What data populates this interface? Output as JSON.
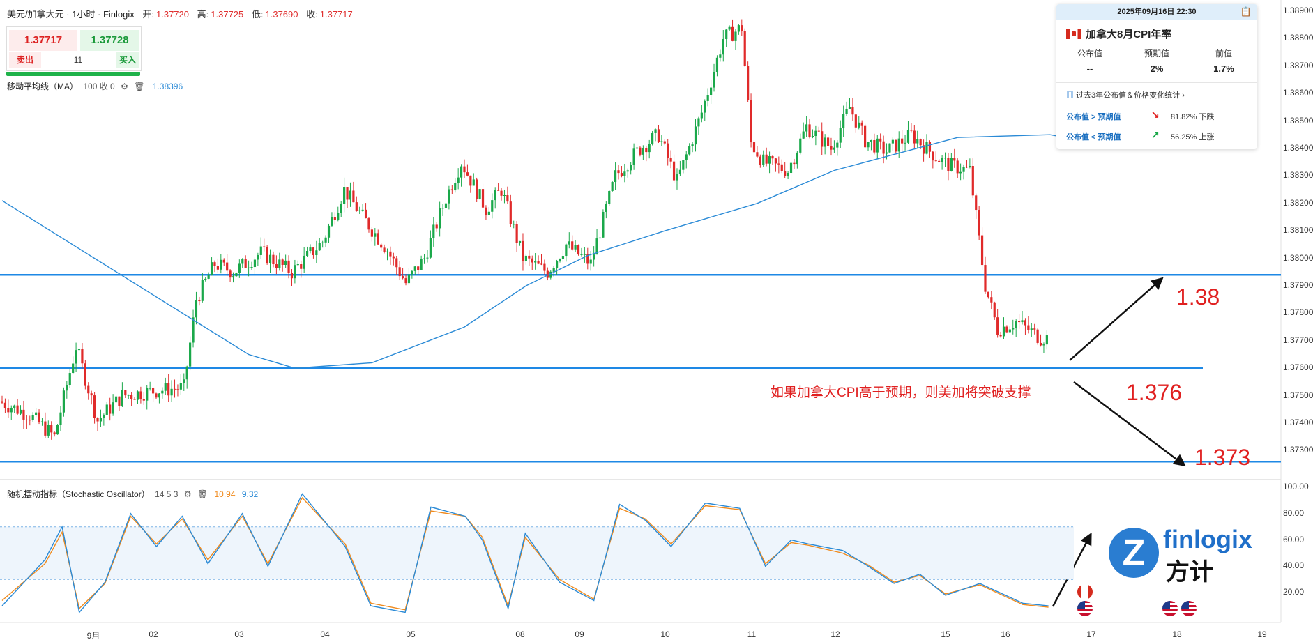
{
  "header": {
    "symbol": "美元/加拿大元 · 1小时 · Finlogix",
    "open_label": "开:",
    "open": "1.37720",
    "high_label": "高:",
    "high": "1.37725",
    "low_label": "低:",
    "low": "1.37690",
    "close_label": "收:",
    "close": "1.37717"
  },
  "trade": {
    "sell_price": "1.37717",
    "buy_price": "1.37728",
    "sell_label": "卖出",
    "buy_label": "买入",
    "quantity": "11"
  },
  "ma_indicator": {
    "label": "移动平均线（MA）",
    "params": "100 收 0",
    "value": "1.38396"
  },
  "stoch_indicator": {
    "label": "随机摆动指标（Stochastic Oscillator）",
    "params": "14 5 3",
    "k_value": "10.94",
    "d_value": "9.32"
  },
  "event_card": {
    "datetime": "2025年09月16日 22:30",
    "title": "加拿大8月CPI年率",
    "cols": [
      {
        "header": "公布值",
        "value": "--"
      },
      {
        "header": "预期值",
        "value": "2%"
      },
      {
        "header": "前值",
        "value": "1.7%"
      }
    ],
    "stats_label": "过去3年公布值＆价格变化统计",
    "rows": [
      {
        "key": "公布值 > 预期值",
        "result": "81.82% 下跌",
        "color": "#e02020"
      },
      {
        "key": "公布值 < 预期值",
        "result": "56.25% 上涨",
        "color": "#1aa84a"
      }
    ]
  },
  "annotations": {
    "note": "如果加拿大CPI高于预期，则美加将突破支撑",
    "level_up": "1.38",
    "level_mid": "1.376",
    "level_low": "1.373"
  },
  "logo": {
    "brand": "finlogix",
    "cn": "方计",
    "mark": "Z"
  },
  "colors": {
    "up": "#1aa84a",
    "down": "#e02a2a",
    "ma": "#2a8ad6",
    "level": "#1e88e5",
    "stoch_k": "#2a8ad6",
    "stoch_d": "#f08a1c",
    "annotation": "#e02020"
  },
  "chart_data": [
    {
      "type": "candlestick",
      "title": "美元/加拿大元 · 1小时",
      "x_ticks": [
        "9月",
        "02",
        "03",
        "04",
        "05",
        "08",
        "09",
        "10",
        "11",
        "12",
        "15",
        "16",
        "17",
        "18",
        "19"
      ],
      "y_ticks": [
        "1.38900",
        "1.38800",
        "1.38700",
        "1.38600",
        "1.38500",
        "1.38400",
        "1.38300",
        "1.38200",
        "1.38100",
        "1.38000",
        "1.37900",
        "1.37800",
        "1.37700",
        "1.37600",
        "1.37500",
        "1.37400",
        "1.37300"
      ],
      "ylim": [
        1.3722,
        1.3892
      ],
      "horizontal_levels": [
        1.3794,
        1.376,
        1.3726
      ],
      "ma_period": 100,
      "ma_path": [
        [
          0,
          1.3821
        ],
        [
          30,
          1.38
        ],
        [
          60,
          1.3779
        ],
        [
          80,
          1.3765
        ],
        [
          95,
          1.376
        ],
        [
          120,
          1.3762
        ],
        [
          150,
          1.3775
        ],
        [
          170,
          1.379
        ],
        [
          190,
          1.3801
        ],
        [
          215,
          1.381
        ],
        [
          245,
          1.382
        ],
        [
          270,
          1.3832
        ],
        [
          290,
          1.3838
        ],
        [
          310,
          1.3844
        ],
        [
          340,
          1.3845
        ],
        [
          360,
          1.3841
        ]
      ],
      "anchors": [
        [
          0,
          1.3748
        ],
        [
          10,
          1.3743
        ],
        [
          18,
          1.3735
        ],
        [
          25,
          1.3768
        ],
        [
          32,
          1.3741
        ],
        [
          40,
          1.375
        ],
        [
          52,
          1.3752
        ],
        [
          60,
          1.3753
        ],
        [
          64,
          1.3785
        ],
        [
          70,
          1.3798
        ],
        [
          76,
          1.3795
        ],
        [
          85,
          1.3802
        ],
        [
          95,
          1.3795
        ],
        [
          105,
          1.3806
        ],
        [
          112,
          1.3825
        ],
        [
          118,
          1.3815
        ],
        [
          126,
          1.3803
        ],
        [
          132,
          1.3791
        ],
        [
          138,
          1.38
        ],
        [
          145,
          1.3822
        ],
        [
          150,
          1.3835
        ],
        [
          158,
          1.3818
        ],
        [
          163,
          1.3825
        ],
        [
          170,
          1.38
        ],
        [
          178,
          1.3795
        ],
        [
          184,
          1.3805
        ],
        [
          192,
          1.3798
        ],
        [
          200,
          1.383
        ],
        [
          208,
          1.384
        ],
        [
          214,
          1.3845
        ],
        [
          220,
          1.3828
        ],
        [
          228,
          1.3853
        ],
        [
          235,
          1.388
        ],
        [
          241,
          1.3884
        ],
        [
          244,
          1.3842
        ],
        [
          248,
          1.3835
        ],
        [
          256,
          1.3832
        ],
        [
          262,
          1.3848
        ],
        [
          270,
          1.384
        ],
        [
          276,
          1.3855
        ],
        [
          281,
          1.3843
        ],
        [
          288,
          1.3839
        ],
        [
          296,
          1.3845
        ],
        [
          304,
          1.3837
        ],
        [
          308,
          1.3834
        ],
        [
          315,
          1.3832
        ],
        [
          320,
          1.379
        ],
        [
          324,
          1.3774
        ],
        [
          330,
          1.3777
        ],
        [
          338,
          1.3771
        ]
      ],
      "stochastic": {
        "ylim": [
          0,
          100
        ],
        "y_ticks": [
          100,
          80,
          60,
          40,
          20
        ],
        "bands": [
          70,
          30
        ],
        "k": [
          [
            0,
            10
          ],
          [
            10,
            45
          ],
          [
            14,
            70
          ],
          [
            18,
            5
          ],
          [
            24,
            28
          ],
          [
            30,
            80
          ],
          [
            36,
            55
          ],
          [
            42,
            78
          ],
          [
            48,
            42
          ],
          [
            56,
            80
          ],
          [
            62,
            40
          ],
          [
            70,
            95
          ],
          [
            80,
            55
          ],
          [
            86,
            10
          ],
          [
            94,
            5
          ],
          [
            100,
            85
          ],
          [
            108,
            78
          ],
          [
            112,
            60
          ],
          [
            118,
            8
          ],
          [
            122,
            65
          ],
          [
            130,
            28
          ],
          [
            138,
            14
          ],
          [
            144,
            87
          ],
          [
            150,
            75
          ],
          [
            156,
            55
          ],
          [
            164,
            88
          ],
          [
            172,
            84
          ],
          [
            178,
            40
          ],
          [
            184,
            60
          ],
          [
            188,
            57
          ],
          [
            196,
            52
          ],
          [
            202,
            40
          ],
          [
            208,
            27
          ],
          [
            214,
            34
          ],
          [
            220,
            18
          ],
          [
            228,
            27
          ],
          [
            238,
            12
          ],
          [
            244,
            10
          ]
        ],
        "d": [
          [
            0,
            14
          ],
          [
            10,
            42
          ],
          [
            14,
            66
          ],
          [
            18,
            8
          ],
          [
            24,
            27
          ],
          [
            30,
            78
          ],
          [
            36,
            57
          ],
          [
            42,
            76
          ],
          [
            48,
            45
          ],
          [
            56,
            78
          ],
          [
            62,
            42
          ],
          [
            70,
            92
          ],
          [
            80,
            57
          ],
          [
            86,
            12
          ],
          [
            94,
            7
          ],
          [
            100,
            82
          ],
          [
            108,
            78
          ],
          [
            112,
            62
          ],
          [
            118,
            10
          ],
          [
            122,
            62
          ],
          [
            130,
            30
          ],
          [
            138,
            15
          ],
          [
            144,
            84
          ],
          [
            150,
            76
          ],
          [
            156,
            57
          ],
          [
            164,
            86
          ],
          [
            172,
            83
          ],
          [
            178,
            42
          ],
          [
            184,
            58
          ],
          [
            188,
            56
          ],
          [
            196,
            50
          ],
          [
            202,
            41
          ],
          [
            208,
            28
          ],
          [
            214,
            33
          ],
          [
            220,
            19
          ],
          [
            228,
            26
          ],
          [
            238,
            11
          ],
          [
            244,
            9
          ]
        ]
      }
    }
  ]
}
